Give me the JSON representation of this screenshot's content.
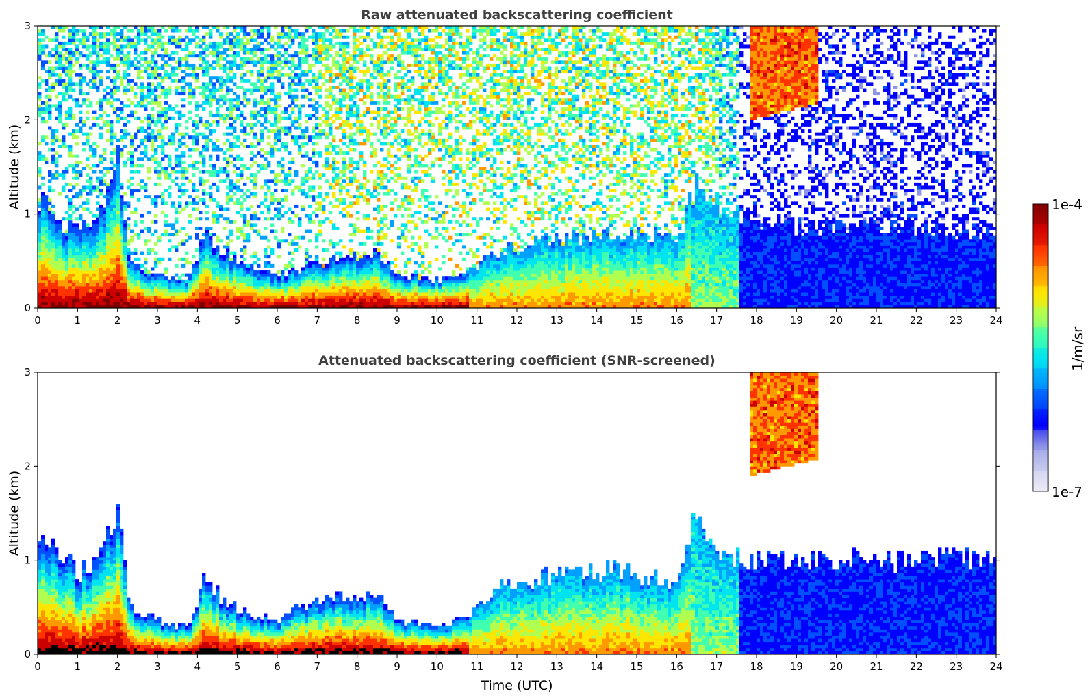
{
  "chart_data": [
    {
      "type": "heatmap",
      "title": "Raw attenuated backscattering coefficient",
      "xlabel": "",
      "ylabel": "Altitude (km)",
      "xlim": [
        0,
        24
      ],
      "ylim": [
        0,
        3
      ],
      "x_ticks": [
        "0",
        "1",
        "2",
        "3",
        "4",
        "5",
        "6",
        "7",
        "8",
        "9",
        "10",
        "11",
        "12",
        "13",
        "14",
        "15",
        "16",
        "17",
        "18",
        "19",
        "20",
        "21",
        "22",
        "23",
        "24"
      ],
      "y_ticks": [
        "0",
        "1",
        "2",
        "3"
      ],
      "screened": false,
      "layer_top_km": [
        [
          0,
          1.2
        ],
        [
          0.5,
          0.9
        ],
        [
          1,
          0.85
        ],
        [
          1.5,
          0.9
        ],
        [
          2,
          1.6
        ],
        [
          2.3,
          0.5
        ],
        [
          3,
          0.35
        ],
        [
          3.8,
          0.3
        ],
        [
          4.2,
          0.85
        ],
        [
          4.6,
          0.6
        ],
        [
          5.2,
          0.45
        ],
        [
          6,
          0.35
        ],
        [
          7,
          0.45
        ],
        [
          7.5,
          0.55
        ],
        [
          8.5,
          0.6
        ],
        [
          9,
          0.35
        ],
        [
          10,
          0.3
        ],
        [
          10.8,
          0.4
        ],
        [
          11.5,
          0.6
        ],
        [
          13,
          0.75
        ],
        [
          14.5,
          0.8
        ],
        [
          16,
          0.75
        ],
        [
          16.5,
          1.3
        ],
        [
          17,
          1.1
        ],
        [
          17.5,
          1.0
        ],
        [
          18,
          0.9
        ],
        [
          20,
          0.85
        ],
        [
          22,
          0.85
        ],
        [
          24,
          0.8
        ]
      ],
      "elevated_aerosol": {
        "x_range_h": [
          17.8,
          19.5
        ],
        "altitude_range_km": [
          2.0,
          3.0
        ]
      },
      "units": "1/m/sr"
    },
    {
      "type": "heatmap",
      "title": "Attenuated backscattering coefficient (SNR-screened)",
      "xlabel": "Time (UTC)",
      "ylabel": "Altitude (km)",
      "xlim": [
        0,
        24
      ],
      "ylim": [
        0,
        3
      ],
      "x_ticks": [
        "0",
        "1",
        "2",
        "3",
        "4",
        "5",
        "6",
        "7",
        "8",
        "9",
        "10",
        "11",
        "12",
        "13",
        "14",
        "15",
        "16",
        "17",
        "18",
        "19",
        "20",
        "21",
        "22",
        "23",
        "24"
      ],
      "y_ticks": [
        "0",
        "1",
        "2",
        "3"
      ],
      "screened": true,
      "layer_top_km": [
        [
          0,
          1.2
        ],
        [
          0.5,
          1.1
        ],
        [
          1,
          0.85
        ],
        [
          1.5,
          0.95
        ],
        [
          2,
          1.6
        ],
        [
          2.3,
          0.5
        ],
        [
          3,
          0.35
        ],
        [
          3.8,
          0.3
        ],
        [
          4.2,
          0.85
        ],
        [
          4.6,
          0.6
        ],
        [
          5.2,
          0.45
        ],
        [
          6,
          0.35
        ],
        [
          7,
          0.6
        ],
        [
          7.5,
          0.6
        ],
        [
          8.5,
          0.65
        ],
        [
          9,
          0.35
        ],
        [
          10,
          0.3
        ],
        [
          10.8,
          0.4
        ],
        [
          11.5,
          0.75
        ],
        [
          13,
          0.85
        ],
        [
          14.5,
          0.9
        ],
        [
          16,
          0.75
        ],
        [
          16.5,
          1.5
        ],
        [
          17,
          1.1
        ],
        [
          17.5,
          1.05
        ],
        [
          18,
          1.0
        ],
        [
          20,
          1.0
        ],
        [
          22,
          1.0
        ],
        [
          24,
          1.05
        ]
      ],
      "elevated_aerosol": {
        "x_range_h": [
          17.8,
          19.5
        ],
        "altitude_range_km": [
          1.9,
          3.0
        ]
      },
      "units": "1/m/sr"
    }
  ],
  "colorbar": {
    "max_label": "1e-4",
    "min_label": "1e-7",
    "units_label": "1/m/sr",
    "colormap": [
      "#ecebf7",
      "#c6c9ef",
      "#8f95e6",
      "#0000ff",
      "#0050ff",
      "#00a0ff",
      "#00e4f0",
      "#40ffb0",
      "#b0ff50",
      "#ffe600",
      "#ff9900",
      "#ff3300",
      "#cc0000",
      "#800000"
    ]
  }
}
